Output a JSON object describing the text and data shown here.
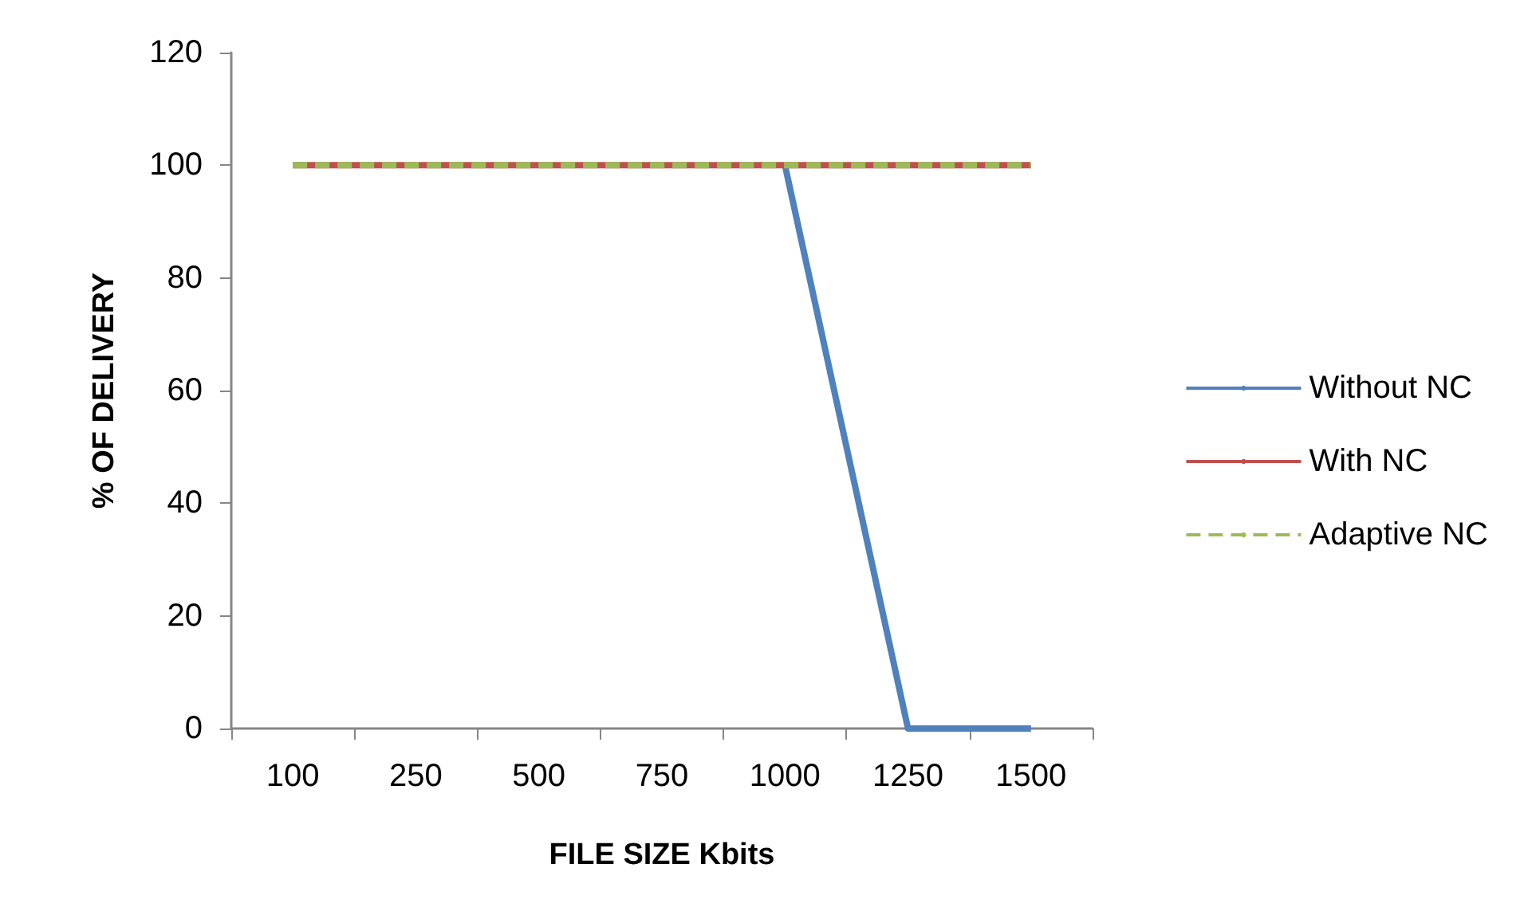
{
  "chart_data": {
    "type": "line",
    "xlabel": "FILE SIZE Kbits",
    "ylabel": "% OF DELIVERY",
    "categories": [
      "100",
      "250",
      "500",
      "750",
      "1000",
      "1250",
      "1500"
    ],
    "series": [
      {
        "name": "Without NC",
        "color": "#4f81bd",
        "values": [
          null,
          null,
          null,
          null,
          100,
          0,
          0
        ],
        "line_style": "solid"
      },
      {
        "name": "With NC",
        "color": "#c0504d",
        "values": [
          100,
          100,
          100,
          100,
          100,
          100,
          100
        ],
        "line_style": "solid"
      },
      {
        "name": "Adaptive NC",
        "color": "#9bbb59",
        "values": [
          100,
          100,
          100,
          100,
          100,
          100,
          100
        ],
        "line_style": "dashed"
      }
    ],
    "ylim": [
      0,
      120
    ],
    "yticks": [
      0,
      20,
      40,
      60,
      80,
      100,
      120
    ],
    "grid": false,
    "legend": "right",
    "marker": "none"
  }
}
